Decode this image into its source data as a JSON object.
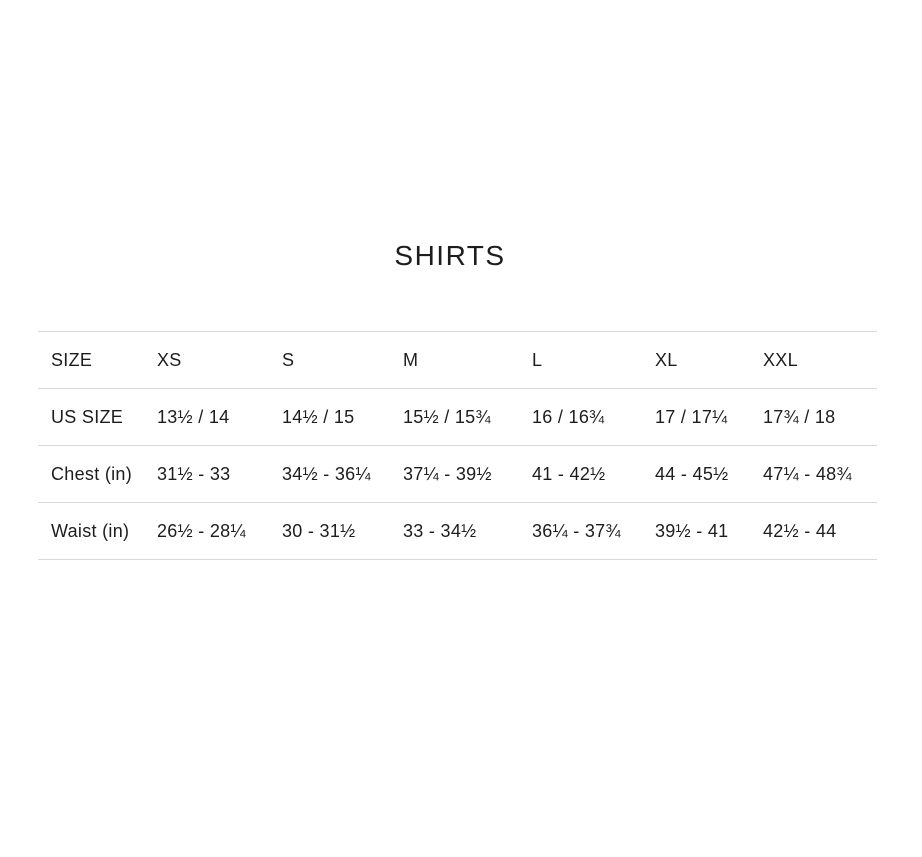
{
  "chart_data": {
    "type": "table",
    "title": "SHIRTS",
    "columns": [
      "SIZE",
      "XS",
      "S",
      "M",
      "L",
      "XL",
      "XXL"
    ],
    "rows": [
      {
        "label": "US SIZE",
        "values": [
          "13½ / 14",
          "14½ / 15",
          "15½ / 15¾",
          "16 / 16¾",
          "17 / 17¼",
          "17¾ / 18"
        ]
      },
      {
        "label": "Chest (in)",
        "values": [
          "31½ - 33",
          "34½ - 36¼",
          "37¼ - 39½",
          "41 - 42½",
          "44 - 45½",
          "47¼ - 48¾"
        ]
      },
      {
        "label": "Waist (in)",
        "values": [
          "26½ - 28¼",
          "30 - 31½",
          "33 - 34½",
          "36¼ - 37¾",
          "39½ - 41",
          "42½ - 44"
        ]
      }
    ],
    "layout": {
      "title_position": "top-center",
      "grid": "horizontal-rules-only"
    }
  },
  "colors": {
    "background": "#ffffff",
    "text": "#1d1d1d",
    "rule": "#d9d9d9"
  }
}
